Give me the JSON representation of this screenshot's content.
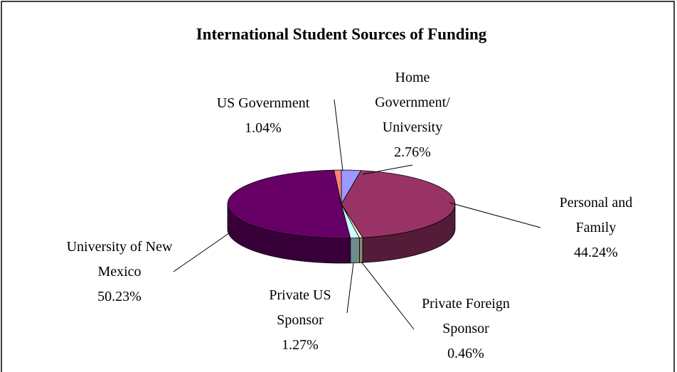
{
  "chart_data": {
    "type": "pie3d",
    "title": "International Student Sources of Funding",
    "categories": [
      "Home Government/ University",
      "Personal and Family",
      "Private Foreign Sponsor",
      "Private US Sponsor",
      "University of New Mexico",
      "US Government"
    ],
    "values": [
      2.76,
      44.24,
      0.46,
      1.27,
      50.23,
      1.04
    ],
    "value_labels": [
      "2.76%",
      "44.24%",
      "0.46%",
      "1.27%",
      "50.23%",
      "1.04%"
    ],
    "colors": [
      "#9999ff",
      "#993366",
      "#ffffcc",
      "#ccffff",
      "#660066",
      "#ff8080"
    ]
  }
}
